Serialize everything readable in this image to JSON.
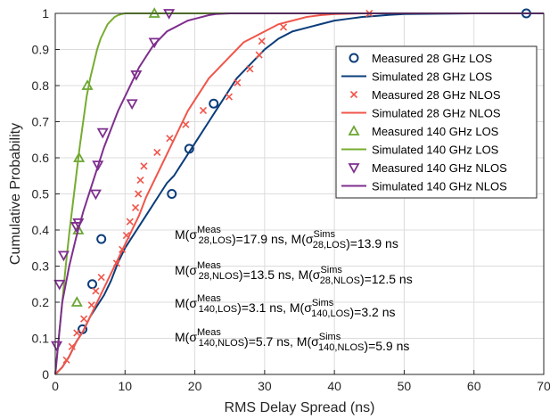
{
  "chart_data": {
    "type": "line",
    "xlabel": "RMS Delay Spread (ns)",
    "ylabel": "Cumulative Probability",
    "xlim": [
      0,
      70
    ],
    "ylim": [
      0,
      1
    ],
    "x_ticks": [
      "0",
      "10",
      "20",
      "30",
      "40",
      "50",
      "60",
      "70"
    ],
    "y_ticks": [
      "0",
      "0.1",
      "0.2",
      "0.3",
      "0.4",
      "0.5",
      "0.6",
      "0.7",
      "0.8",
      "0.9",
      "1"
    ],
    "grid": true,
    "legend_position": "top-right",
    "series": [
      {
        "name": "Measured 28 GHz LOS",
        "kind": "markers",
        "marker": "circle",
        "color": "#0b3d7a",
        "x": [
          3.9,
          5.3,
          6.6,
          16.7,
          19.2,
          22.7,
          67.5
        ],
        "y": [
          0.125,
          0.25,
          0.375,
          0.5,
          0.625,
          0.75,
          1.0
        ]
      },
      {
        "name": "Simulated 28 GHz LOS",
        "kind": "line",
        "color": "#0b3d7a",
        "x": [
          0,
          1,
          2,
          3,
          4,
          5,
          6,
          7,
          8,
          9,
          10,
          11,
          12,
          13,
          14,
          15,
          16,
          17,
          18,
          19,
          20,
          21,
          22,
          23,
          24,
          25,
          26,
          27,
          28,
          29,
          30,
          32,
          34,
          36,
          38,
          40,
          42,
          44,
          46,
          48,
          50,
          55,
          60,
          65,
          70
        ],
        "y": [
          0,
          0.02,
          0.05,
          0.09,
          0.12,
          0.16,
          0.19,
          0.22,
          0.26,
          0.31,
          0.35,
          0.38,
          0.41,
          0.44,
          0.47,
          0.5,
          0.53,
          0.55,
          0.58,
          0.61,
          0.64,
          0.67,
          0.7,
          0.73,
          0.76,
          0.79,
          0.82,
          0.84,
          0.86,
          0.88,
          0.9,
          0.93,
          0.95,
          0.96,
          0.97,
          0.98,
          0.985,
          0.99,
          0.993,
          0.996,
          0.998,
          0.999,
          1.0,
          1.0,
          1.0
        ]
      },
      {
        "name": "Measured 28 GHz NLOS",
        "kind": "markers",
        "marker": "x",
        "color": "#f0554a",
        "x": [
          1.6,
          2.4,
          3.1,
          4.1,
          5.2,
          5.8,
          6.6,
          8.8,
          9.6,
          10.2,
          10.7,
          11.5,
          11.9,
          12.2,
          12.7,
          14.6,
          16.4,
          18.7,
          21.2,
          24.9,
          26.1,
          27.9,
          29.2,
          29.6,
          32.7,
          45.0
        ],
        "y": [
          0.04,
          0.077,
          0.115,
          0.154,
          0.192,
          0.231,
          0.269,
          0.308,
          0.346,
          0.385,
          0.423,
          0.462,
          0.5,
          0.538,
          0.577,
          0.615,
          0.654,
          0.692,
          0.731,
          0.769,
          0.808,
          0.846,
          0.885,
          0.923,
          0.962,
          1.0
        ]
      },
      {
        "name": "Simulated 28 GHz NLOS",
        "kind": "line",
        "color": "#f0554a",
        "x": [
          0,
          1,
          2,
          3,
          4,
          5,
          6,
          7,
          8,
          9,
          10,
          11,
          12,
          13,
          14,
          15,
          16,
          17,
          18,
          19,
          20,
          21,
          22,
          23,
          24,
          25,
          26,
          27,
          28,
          30,
          32,
          34,
          36,
          38,
          40,
          42,
          44,
          45
        ],
        "y": [
          0,
          0.02,
          0.05,
          0.09,
          0.12,
          0.16,
          0.2,
          0.24,
          0.28,
          0.32,
          0.36,
          0.4,
          0.44,
          0.49,
          0.53,
          0.57,
          0.61,
          0.65,
          0.69,
          0.73,
          0.76,
          0.79,
          0.82,
          0.84,
          0.86,
          0.88,
          0.9,
          0.92,
          0.93,
          0.95,
          0.97,
          0.98,
          0.99,
          0.995,
          0.998,
          0.999,
          1.0,
          1.0
        ]
      },
      {
        "name": "Measured 140 GHz LOS",
        "kind": "markers",
        "marker": "triangle-up",
        "color": "#6aa532",
        "x": [
          3.1,
          3.3,
          3.4,
          4.6,
          14.2
        ],
        "y": [
          0.2,
          0.4,
          0.6,
          0.8,
          1.0
        ]
      },
      {
        "name": "Simulated 140 GHz LOS",
        "kind": "line",
        "color": "#77ac30",
        "x": [
          0,
          0.5,
          1,
          1.5,
          2,
          2.5,
          3,
          3.5,
          4,
          4.5,
          5,
          5.5,
          6,
          6.5,
          7,
          7.5,
          8,
          8.5,
          9,
          9.5,
          10,
          10.5,
          11
        ],
        "y": [
          0,
          0.1,
          0.2,
          0.3,
          0.39,
          0.47,
          0.55,
          0.63,
          0.7,
          0.77,
          0.82,
          0.86,
          0.9,
          0.93,
          0.95,
          0.97,
          0.98,
          0.99,
          0.995,
          0.998,
          1.0,
          1.0,
          1.0
        ]
      },
      {
        "name": "Measured 140 GHz NLOS",
        "kind": "markers",
        "marker": "triangle-down",
        "color": "#7e2f8e",
        "x": [
          0.2,
          0.6,
          1.2,
          3.0,
          3.3,
          5.8,
          6.1,
          6.8,
          11.0,
          11.6,
          14.2,
          16.3
        ],
        "y": [
          0.08,
          0.25,
          0.33,
          0.41,
          0.42,
          0.5,
          0.58,
          0.67,
          0.75,
          0.83,
          0.92,
          1.0
        ]
      },
      {
        "name": "Simulated 140 GHz NLOS",
        "kind": "line",
        "color": "#7e2f8e",
        "x": [
          0,
          1,
          2,
          3,
          4,
          5,
          6,
          7,
          8,
          9,
          10,
          11,
          12,
          13,
          14,
          15,
          16,
          17,
          18,
          19,
          20,
          21,
          22,
          23,
          24,
          25
        ],
        "y": [
          0,
          0.2,
          0.3,
          0.38,
          0.45,
          0.51,
          0.57,
          0.63,
          0.68,
          0.73,
          0.77,
          0.81,
          0.85,
          0.88,
          0.91,
          0.93,
          0.95,
          0.96,
          0.97,
          0.98,
          0.985,
          0.99,
          0.995,
          0.998,
          0.999,
          1.0
        ]
      }
    ],
    "annotations": [
      {
        "m1": "M(",
        "sym1": "σ",
        "sup1": "Meas",
        "sub1": "28,LOS",
        "mid": ")=17.9 ns, M(",
        "sym2": "σ",
        "sup2": "Sims",
        "sub2": "28,LOS",
        "end": ")=13.9 ns"
      },
      {
        "m1": "M(",
        "sym1": "σ",
        "sup1": "Meas",
        "sub1": "28,NLOS",
        "mid": ")=13.5 ns, M(",
        "sym2": "σ",
        "sup2": "Sims",
        "sub2": "28,NLOS",
        "end": ")=12.5 ns"
      },
      {
        "m1": "M(",
        "sym1": "σ",
        "sup1": "Meas",
        "sub1": "140,LOS",
        "mid": ")=3.1 ns, M(",
        "sym2": "σ",
        "sup2": "Sims",
        "sub2": "140,LOS",
        "end": ")=3.2 ns"
      },
      {
        "m1": "M(",
        "sym1": "σ",
        "sup1": "Meas",
        "sub1": "140,NLOS",
        "mid": ")=5.7 ns, M(",
        "sym2": "σ",
        "sup2": "Sims",
        "sub2": "140,NLOS",
        "end": ")=5.9 ns"
      }
    ]
  }
}
